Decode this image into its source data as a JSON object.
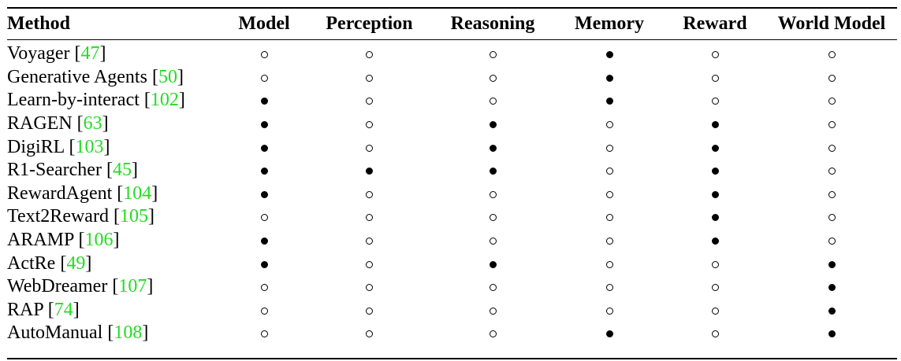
{
  "table": {
    "columns": [
      "Method",
      "Model",
      "Perception",
      "Reasoning",
      "Memory",
      "Reward",
      "World Model"
    ],
    "legend": {
      "filled": "filled-circle",
      "empty": "empty-circle"
    },
    "rows": [
      {
        "name": "Voyager ",
        "ref": "47",
        "marks": [
          false,
          false,
          false,
          true,
          false,
          false
        ]
      },
      {
        "name": "Generative Agents ",
        "ref": "50",
        "marks": [
          false,
          false,
          false,
          true,
          false,
          false
        ]
      },
      {
        "name": "Learn-by-interact ",
        "ref": "102",
        "marks": [
          true,
          false,
          false,
          true,
          false,
          false
        ]
      },
      {
        "name": "RAGEN ",
        "ref": "63",
        "marks": [
          true,
          false,
          true,
          false,
          true,
          false
        ]
      },
      {
        "name": "DigiRL ",
        "ref": "103",
        "marks": [
          true,
          false,
          true,
          false,
          true,
          false
        ]
      },
      {
        "name": "R1-Searcher ",
        "ref": "45",
        "marks": [
          true,
          true,
          true,
          false,
          true,
          false
        ]
      },
      {
        "name": "RewardAgent ",
        "ref": "104",
        "marks": [
          true,
          false,
          false,
          false,
          true,
          false
        ]
      },
      {
        "name": "Text2Reward ",
        "ref": "105",
        "marks": [
          false,
          false,
          false,
          false,
          true,
          false
        ]
      },
      {
        "name": "ARAMP ",
        "ref": "106",
        "marks": [
          true,
          false,
          false,
          false,
          true,
          false
        ]
      },
      {
        "name": "ActRe ",
        "ref": "49",
        "marks": [
          true,
          false,
          true,
          false,
          false,
          true
        ]
      },
      {
        "name": "WebDreamer ",
        "ref": "107",
        "marks": [
          false,
          false,
          false,
          false,
          false,
          true
        ]
      },
      {
        "name": "RAP ",
        "ref": "74",
        "marks": [
          false,
          false,
          false,
          false,
          false,
          true
        ]
      },
      {
        "name": "AutoManual ",
        "ref": "108",
        "marks": [
          false,
          false,
          false,
          true,
          false,
          true
        ]
      }
    ],
    "colors": {
      "ref_link": "#22dd22",
      "text": "#000000",
      "rule": "#000000"
    }
  }
}
